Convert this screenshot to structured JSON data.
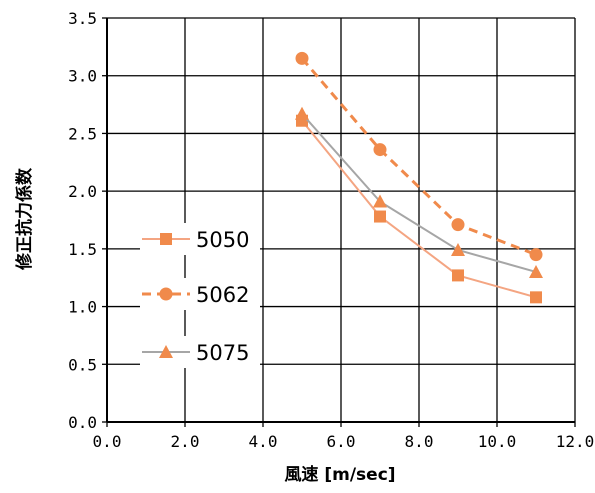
{
  "chart_data": {
    "type": "line",
    "title": "",
    "xlabel": "風速 [m/sec]",
    "ylabel": "修正抗力係数",
    "xlim": [
      0,
      12
    ],
    "ylim": [
      0,
      3.5
    ],
    "x_ticks": [
      "0.0",
      "2.0",
      "4.0",
      "6.0",
      "8.0",
      "10.0",
      "12.0"
    ],
    "y_ticks": [
      "0.0",
      "0.5",
      "1.0",
      "1.5",
      "2.0",
      "2.5",
      "3.0",
      "3.5"
    ],
    "x_tick_values": [
      0,
      2,
      4,
      6,
      8,
      10,
      12
    ],
    "y_tick_values": [
      0,
      0.5,
      1.0,
      1.5,
      2.0,
      2.5,
      3.0,
      3.5
    ],
    "grid": true,
    "legend_position": "left",
    "series": [
      {
        "name": "5050",
        "x": [
          5,
          7,
          9,
          11
        ],
        "y": [
          2.61,
          1.78,
          1.27,
          1.08
        ],
        "color": "#f4a582",
        "marker_color": "#f08a4b",
        "marker": "square",
        "line": "solid"
      },
      {
        "name": "5062",
        "x": [
          5,
          7,
          9,
          11
        ],
        "y": [
          3.15,
          2.36,
          1.71,
          1.45
        ],
        "color": "#f08a4b",
        "marker_color": "#f08a4b",
        "marker": "circle",
        "line": "dashed"
      },
      {
        "name": "5075",
        "x": [
          5,
          7,
          9,
          11
        ],
        "y": [
          2.67,
          1.91,
          1.49,
          1.3
        ],
        "color": "#a6a6a6",
        "marker_color": "#f08a4b",
        "marker": "triangle",
        "line": "solid"
      }
    ]
  }
}
